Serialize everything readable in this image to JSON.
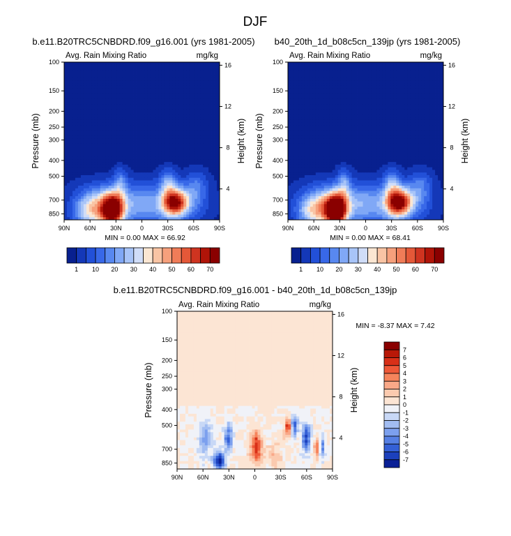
{
  "figure_title": "DJF",
  "chart_data": [
    {
      "type": "heatmap",
      "id": "model-a",
      "title": "b.e11.B20TRC5CNBDRD.f09_g16.001 (yrs 1981-2005)",
      "left_label": "Avg. Rain Mixing Ratio",
      "right_label": "mg/kg",
      "ylabel": "Pressure (mb)",
      "ylabel_right": "Height (km)",
      "x_ticks": [
        "90N",
        "60N",
        "30N",
        "0",
        "30S",
        "60S",
        "90S"
      ],
      "y_ticks": [
        "100",
        "150",
        "200",
        "250",
        "300",
        "400",
        "500",
        "700",
        "850"
      ],
      "y_right_ticks": [
        "16",
        "12",
        "8",
        "4"
      ],
      "stats": "MIN =  0.00  MAX = 66.92",
      "min": 0.0,
      "max": 66.92,
      "colorbar": {
        "labels": [
          "1",
          "10",
          "20",
          "30",
          "40",
          "50",
          "60",
          "70"
        ],
        "colors": [
          "#08208f",
          "#1438b8",
          "#2250d8",
          "#3868e8",
          "#5888f0",
          "#80a8f6",
          "#a8c4f8",
          "#d0ddf8",
          "#fbe6d2",
          "#f9c4a4",
          "#f6a07c",
          "#f07c58",
          "#e45838",
          "#cf3420",
          "#b01408",
          "#8a0000"
        ]
      }
    },
    {
      "type": "heatmap",
      "id": "model-b",
      "title": "b40_20th_1d_b08c5cn_139jp (yrs 1981-2005)",
      "left_label": "Avg. Rain Mixing Ratio",
      "right_label": "mg/kg",
      "ylabel": "Pressure (mb)",
      "ylabel_right": "Height (km)",
      "x_ticks": [
        "90N",
        "60N",
        "30N",
        "0",
        "30S",
        "60S",
        "90S"
      ],
      "y_ticks": [
        "100",
        "150",
        "200",
        "250",
        "300",
        "400",
        "500",
        "700",
        "850"
      ],
      "y_right_ticks": [
        "16",
        "12",
        "8",
        "4"
      ],
      "stats": "MIN =  0.00  MAX = 68.41",
      "min": 0.0,
      "max": 68.41,
      "colorbar": {
        "labels": [
          "1",
          "10",
          "20",
          "30",
          "40",
          "50",
          "60",
          "70"
        ],
        "colors": [
          "#08208f",
          "#1438b8",
          "#2250d8",
          "#3868e8",
          "#5888f0",
          "#80a8f6",
          "#a8c4f8",
          "#d0ddf8",
          "#fbe6d2",
          "#f9c4a4",
          "#f6a07c",
          "#f07c58",
          "#e45838",
          "#cf3420",
          "#b01408",
          "#8a0000"
        ]
      }
    },
    {
      "type": "heatmap",
      "id": "difference",
      "title": "b.e11.B20TRC5CNBDRD.f09_g16.001 - b40_20th_1d_b08c5cn_139jp",
      "left_label": "Avg. Rain Mixing Ratio",
      "right_label": "mg/kg",
      "ylabel": "Pressure (mb)",
      "ylabel_right": "Height (km)",
      "x_ticks": [
        "90N",
        "60N",
        "30N",
        "0",
        "30S",
        "60S",
        "90S"
      ],
      "y_ticks": [
        "100",
        "150",
        "200",
        "250",
        "300",
        "400",
        "500",
        "700",
        "850"
      ],
      "y_right_ticks": [
        "16",
        "12",
        "8",
        "4"
      ],
      "stats": "MIN = -8.37  MAX =  7.42",
      "min": -8.37,
      "max": 7.42,
      "colorbar": {
        "labels": [
          "7",
          "6",
          "5",
          "4",
          "3",
          "2",
          "1",
          "0",
          "-1",
          "-2",
          "-3",
          "-4",
          "-5",
          "-6",
          "-7"
        ],
        "colors": [
          "#8a0000",
          "#b81808",
          "#d83018",
          "#ee5838",
          "#f6845c",
          "#f9a888",
          "#fbcaaf",
          "#fce5d4",
          "#f0f2f8",
          "#c8d8f6",
          "#a2bdf2",
          "#7ca0ee",
          "#5680e4",
          "#3460d6",
          "#1c40bc",
          "#0a2096"
        ]
      }
    }
  ]
}
